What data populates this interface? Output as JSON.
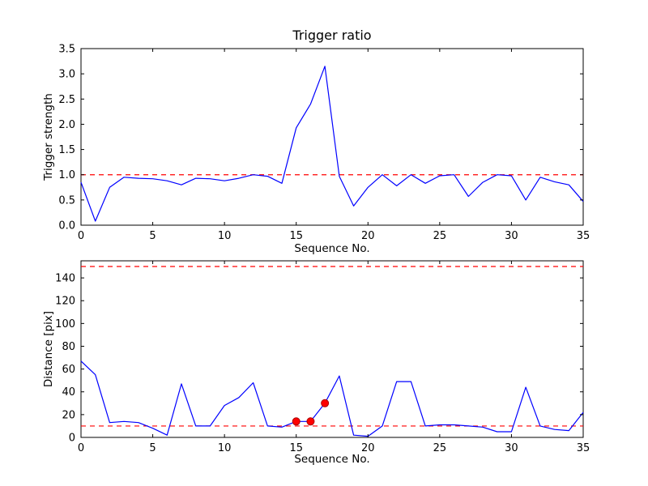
{
  "figure": {
    "background": "#ffffff",
    "axis_color": "#000000",
    "line_color": "#0000ff",
    "dashed_color": "#ff0000",
    "marker_fill": "#ff0000",
    "marker_edge": "#aa0000"
  },
  "chart_data": [
    {
      "type": "line",
      "name": "trigger-ratio-plot",
      "title": "Trigger ratio",
      "xlabel": "Sequence No.",
      "ylabel": "Trigger strength",
      "xlim": [
        0,
        35
      ],
      "ylim": [
        0.0,
        3.5
      ],
      "xticks": [
        "0",
        "5",
        "10",
        "15",
        "20",
        "25",
        "30",
        "35"
      ],
      "yticks": [
        "0.0",
        "0.5",
        "1.0",
        "1.5",
        "2.0",
        "2.5",
        "3.0",
        "3.5"
      ],
      "grid": false,
      "legend": "none",
      "x": [
        0,
        1,
        2,
        3,
        4,
        5,
        6,
        7,
        8,
        9,
        10,
        11,
        12,
        13,
        14,
        15,
        16,
        17,
        18,
        19,
        20,
        21,
        22,
        23,
        24,
        25,
        26,
        27,
        28,
        29,
        30,
        31,
        32,
        33,
        34,
        35
      ],
      "series": [
        {
          "name": "trigger-strength",
          "color": "#0000ff",
          "values": [
            0.85,
            0.08,
            0.75,
            0.95,
            0.93,
            0.92,
            0.88,
            0.8,
            0.93,
            0.92,
            0.88,
            0.93,
            1.0,
            0.97,
            0.83,
            1.93,
            2.4,
            3.15,
            0.97,
            0.38,
            0.75,
            1.0,
            0.78,
            1.0,
            0.83,
            0.98,
            1.0,
            0.57,
            0.85,
            1.0,
            0.98,
            0.5,
            0.95,
            0.86,
            0.8,
            0.47
          ]
        }
      ],
      "hlines": [
        {
          "y": 1.0,
          "style": "dashed",
          "color": "#ff0000"
        }
      ],
      "markers": []
    },
    {
      "type": "line",
      "name": "distance-plot",
      "title": "",
      "xlabel": "Sequence No.",
      "ylabel": "Distance [pix]",
      "xlim": [
        0,
        35
      ],
      "ylim": [
        0,
        155
      ],
      "xticks": [
        "0",
        "5",
        "10",
        "15",
        "20",
        "25",
        "30",
        "35"
      ],
      "yticks": [
        "0",
        "20",
        "40",
        "60",
        "80",
        "100",
        "120",
        "140"
      ],
      "grid": false,
      "legend": "none",
      "x": [
        0,
        1,
        2,
        3,
        4,
        5,
        6,
        7,
        8,
        9,
        10,
        11,
        12,
        13,
        14,
        15,
        16,
        17,
        18,
        19,
        20,
        21,
        22,
        23,
        24,
        25,
        26,
        27,
        28,
        29,
        30,
        31,
        32,
        33,
        34,
        35
      ],
      "series": [
        {
          "name": "distance",
          "color": "#0000ff",
          "values": [
            67,
            55,
            13,
            14,
            13,
            8,
            2,
            47,
            10,
            10,
            28,
            35,
            48,
            10,
            9,
            14,
            14,
            30,
            54,
            2,
            1,
            10,
            49,
            49,
            10,
            11,
            11,
            10,
            9,
            5,
            5,
            44,
            10,
            7,
            6,
            22
          ]
        }
      ],
      "hlines": [
        {
          "y": 150,
          "style": "dashed",
          "color": "#ff0000"
        },
        {
          "y": 10,
          "style": "dashed",
          "color": "#ff0000"
        }
      ],
      "markers": [
        {
          "x": 15,
          "y": 14
        },
        {
          "x": 16,
          "y": 14
        },
        {
          "x": 17,
          "y": 30
        }
      ]
    }
  ]
}
